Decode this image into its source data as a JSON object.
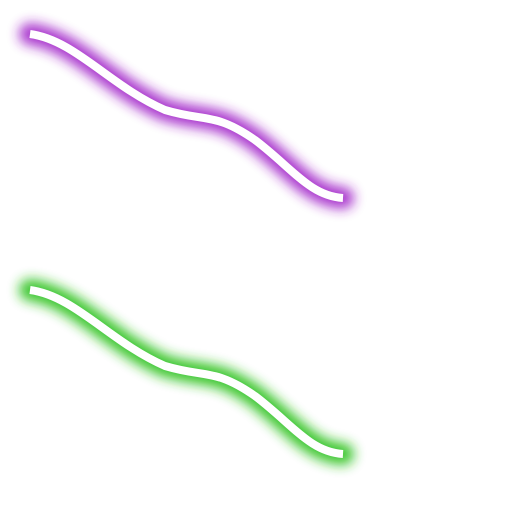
{
  "background": "#ffffff",
  "strokes": [
    {
      "id": "purple-glow-stroke",
      "core_color": "#ffffff",
      "glow_color": "#a020c8"
    },
    {
      "id": "green-glow-stroke",
      "core_color": "#ffffff",
      "glow_color": "#28c018"
    }
  ]
}
